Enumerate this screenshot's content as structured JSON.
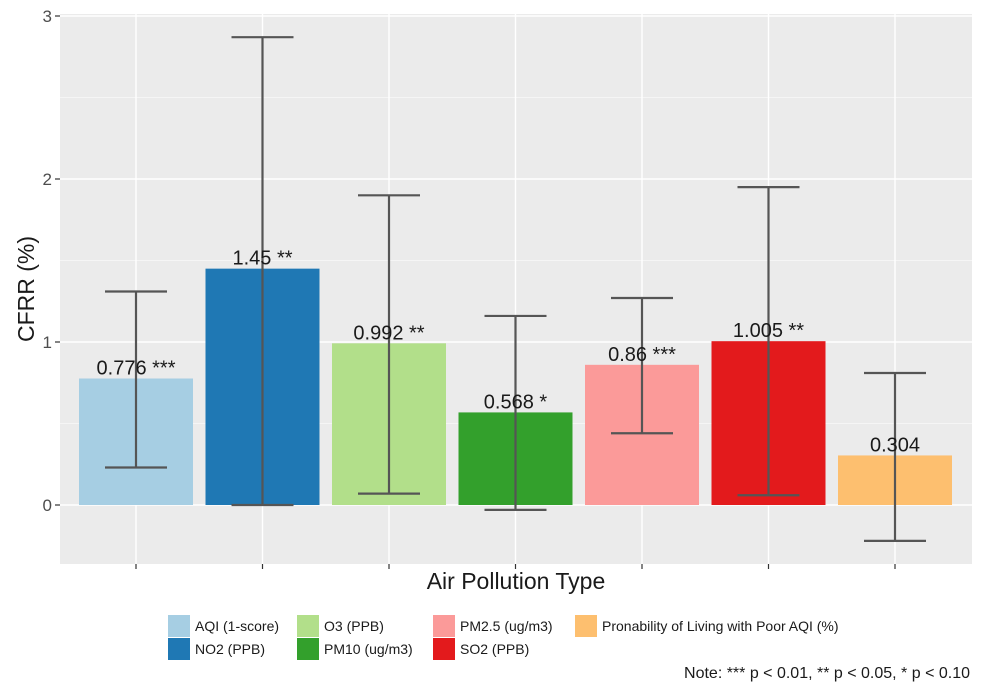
{
  "chart_data": {
    "type": "bar",
    "title": "",
    "xlabel": "Air Pollution Type",
    "ylabel": "CFRR (%)",
    "ylim": [
      -0.35,
      3.0
    ],
    "yticks": [
      0,
      1,
      2,
      3
    ],
    "grid": true,
    "legend_position": "bottom",
    "categories": [
      "AQI (1-score)",
      "NO2 (PPB)",
      "O3 (PPB)",
      "PM10 (ug/m3)",
      "PM2.5 (ug/m3)",
      "SO2 (PPB)",
      "Pronability of Living with Poor AQI (%)"
    ],
    "values": [
      0.776,
      1.45,
      0.992,
      0.568,
      0.86,
      1.005,
      0.304
    ],
    "error_low": [
      0.23,
      0.0,
      0.07,
      -0.03,
      0.44,
      0.06,
      -0.22
    ],
    "error_high": [
      1.31,
      2.87,
      1.9,
      1.16,
      1.27,
      1.95,
      0.81
    ],
    "data_labels": [
      "0.776 ***",
      "1.45 **",
      "0.992 **",
      "0.568 *",
      "0.86 ***",
      "1.005 **",
      "0.304"
    ],
    "colors": [
      "#a6cee3",
      "#1f78b4",
      "#b2df8a",
      "#33a02c",
      "#fb9a99",
      "#e31a1c",
      "#fdbf6f"
    ],
    "note": "Note: *** p < 0.01, ** p < 0.05, * p < 0.10"
  }
}
